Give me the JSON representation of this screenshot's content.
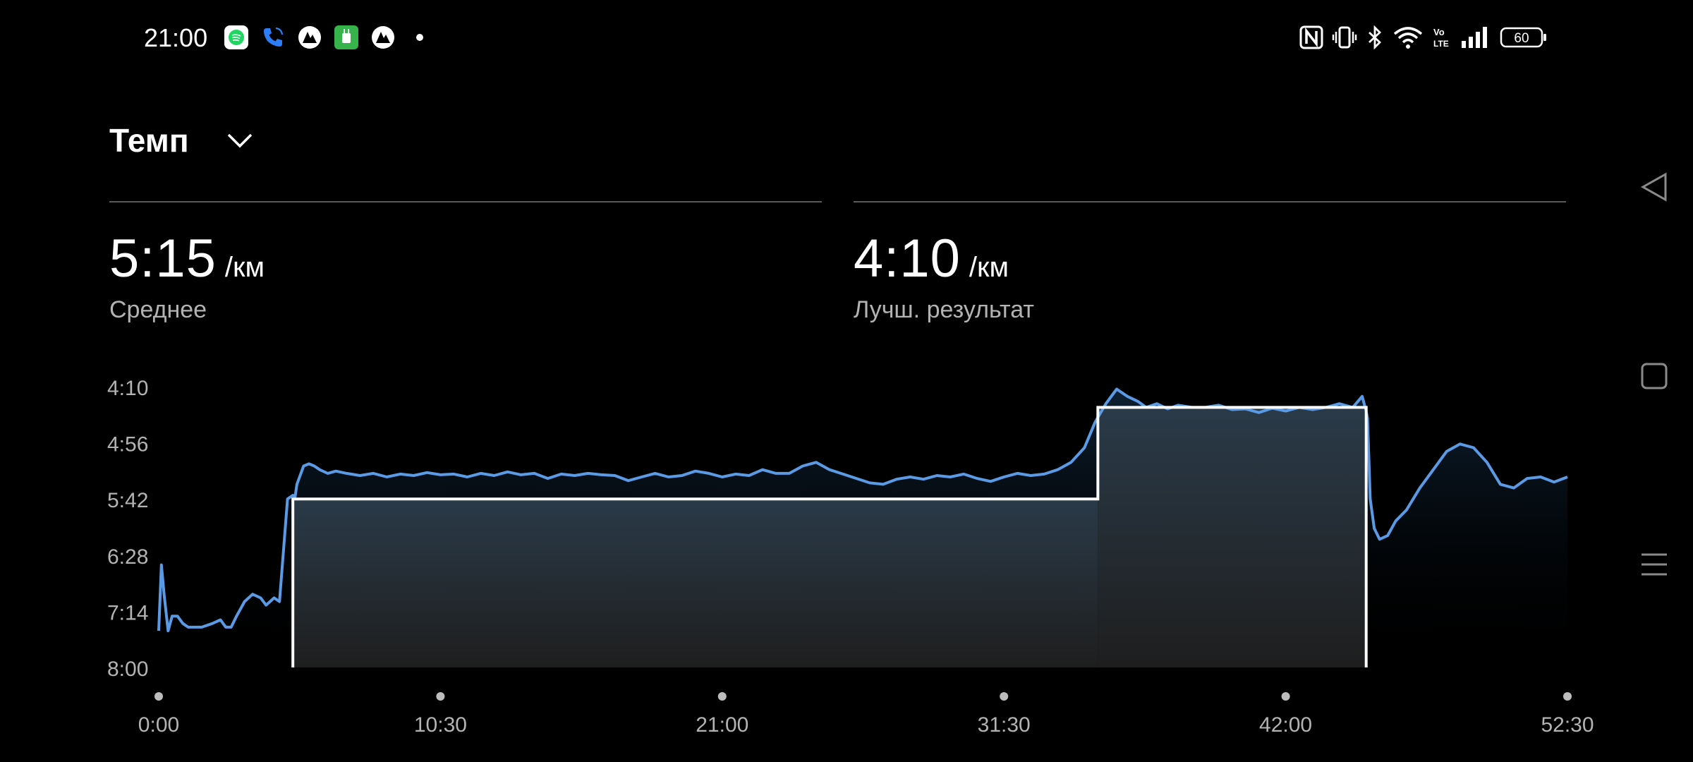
{
  "status_bar": {
    "time": "21:00",
    "notification_icons": [
      "spotify-icon",
      "phone-call-icon",
      "strava-like-icon",
      "green-app-icon",
      "strava-like-icon-2",
      "more-dot-icon"
    ],
    "system_icons": [
      "nfc-icon",
      "vibrate-icon",
      "bluetooth-icon",
      "wifi-icon",
      "volte-icon",
      "signal-icon"
    ],
    "battery": "60"
  },
  "header": {
    "title": "Темп"
  },
  "stats": [
    {
      "value": "5:15",
      "unit": "/км",
      "caption": "Среднее"
    },
    {
      "value": "4:10",
      "unit": "/км",
      "caption": "Лучш. результат"
    }
  ],
  "colors": {
    "background": "#000000",
    "line": "#5b9be6",
    "laps": "#ffffff",
    "divider": "#5a5a5a",
    "caption": "#b3b3b3"
  },
  "chart_data": {
    "type": "line",
    "x_unit": "minutes",
    "y_unit": "min/km",
    "y_ticks": [
      "4:10",
      "4:56",
      "5:42",
      "6:28",
      "7:14",
      "8:00"
    ],
    "y_tick_values": [
      4.1667,
      4.9333,
      5.7,
      6.4667,
      7.2333,
      8.0
    ],
    "ylim": [
      4.1667,
      8.0
    ],
    "x_ticks": [
      "0:00",
      "10:30",
      "21:00",
      "31:30",
      "42:00",
      "52:30"
    ],
    "x_tick_values": [
      0,
      10.5,
      21,
      31.5,
      42,
      52.5
    ],
    "xlim": [
      0,
      52.5
    ],
    "series": [
      {
        "x": [
          0.0,
          0.1,
          0.2,
          0.35,
          0.5,
          0.7,
          0.9,
          1.1,
          1.3,
          1.6,
          2.0,
          2.3,
          2.5,
          2.7,
          2.9,
          3.2,
          3.5,
          3.8,
          4.0,
          4.3,
          4.5,
          4.8,
          5.0,
          5.08,
          5.15,
          5.25,
          5.4,
          5.6,
          5.8,
          6.0,
          6.3,
          6.6,
          7.0,
          7.5,
          8.0,
          8.5,
          9.0,
          9.5,
          10.0,
          10.5,
          11.0,
          11.5,
          12.0,
          12.5,
          13.0,
          13.5,
          14.0,
          14.5,
          15.0,
          15.5,
          16.0,
          16.5,
          17.0,
          17.5,
          18.0,
          18.5,
          19.0,
          19.5,
          20.0,
          20.5,
          21.0,
          21.5,
          22.0,
          22.5,
          23.0,
          23.5,
          24.0,
          24.5,
          25.0,
          25.5,
          26.0,
          26.5,
          27.0,
          27.5,
          28.0,
          28.5,
          29.0,
          29.5,
          30.0,
          30.5,
          31.0,
          31.5,
          32.0,
          32.5,
          33.0,
          33.5,
          34.0,
          34.5,
          34.9,
          35.3,
          35.7,
          36.1,
          36.5,
          36.8,
          37.2,
          37.6,
          38.0,
          38.5,
          39.0,
          39.5,
          40.0,
          40.5,
          41.0,
          41.5,
          42.0,
          42.5,
          43.0,
          43.5,
          44.0,
          44.5,
          44.85,
          45.0,
          45.05,
          45.15,
          45.3,
          45.5,
          45.8,
          46.1,
          46.5,
          47.0,
          47.5,
          48.0,
          48.5,
          49.0,
          49.5,
          50.0,
          50.5,
          51.0,
          51.5,
          52.0,
          52.5
        ],
        "y": [
          7.5,
          6.6,
          7.0,
          7.5,
          7.3,
          7.3,
          7.4,
          7.45,
          7.45,
          7.45,
          7.4,
          7.35,
          7.45,
          7.45,
          7.3,
          7.1,
          7.0,
          7.05,
          7.15,
          7.05,
          7.1,
          5.7,
          5.65,
          5.68,
          5.5,
          5.4,
          5.25,
          5.22,
          5.25,
          5.3,
          5.35,
          5.32,
          5.35,
          5.38,
          5.35,
          5.4,
          5.36,
          5.38,
          5.34,
          5.37,
          5.36,
          5.4,
          5.35,
          5.38,
          5.33,
          5.37,
          5.35,
          5.42,
          5.36,
          5.38,
          5.35,
          5.37,
          5.38,
          5.45,
          5.4,
          5.35,
          5.4,
          5.38,
          5.32,
          5.35,
          5.4,
          5.36,
          5.38,
          5.3,
          5.35,
          5.35,
          5.25,
          5.2,
          5.3,
          5.36,
          5.42,
          5.48,
          5.5,
          5.43,
          5.4,
          5.43,
          5.38,
          5.4,
          5.36,
          5.42,
          5.46,
          5.4,
          5.35,
          5.38,
          5.36,
          5.3,
          5.2,
          5.0,
          4.65,
          4.4,
          4.2,
          4.3,
          4.37,
          4.45,
          4.4,
          4.47,
          4.42,
          4.45,
          4.45,
          4.42,
          4.48,
          4.47,
          4.52,
          4.46,
          4.5,
          4.45,
          4.48,
          4.45,
          4.4,
          4.45,
          4.3,
          4.5,
          4.6,
          5.7,
          6.1,
          6.25,
          6.2,
          6.0,
          5.85,
          5.55,
          5.3,
          5.05,
          4.95,
          5.0,
          5.2,
          5.5,
          5.55,
          5.42,
          5.4,
          5.47,
          5.4
        ]
      }
    ],
    "laps": [
      {
        "x_start": 5.0,
        "x_end": 35.0,
        "y": 5.7
      },
      {
        "x_start": 35.0,
        "x_end": 45.0,
        "y": 4.45
      }
    ]
  }
}
